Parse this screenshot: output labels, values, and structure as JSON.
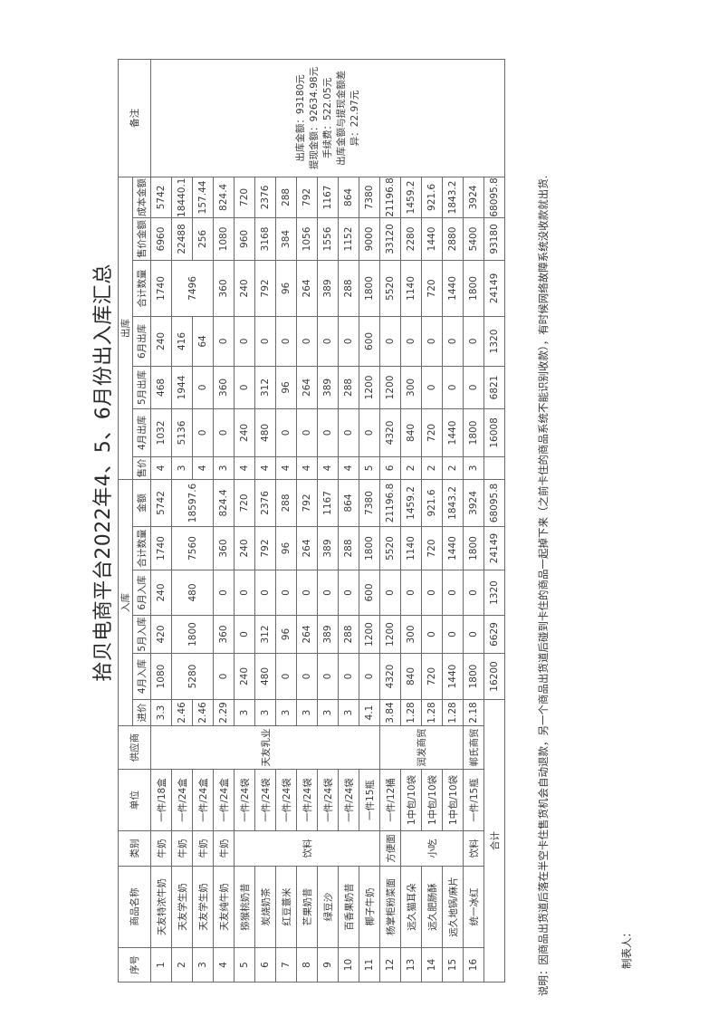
{
  "title": "拾贝电商平台2022年4、5、6月份出入库汇总",
  "headers": {
    "no": "序号",
    "name": "商品名称",
    "category": "类别",
    "unit": "单位",
    "supplier": "供应商",
    "inbound_group": "入库",
    "outbound_group": "出库",
    "remarks": "备注",
    "cost_price": "进价",
    "in_apr": "4月入库",
    "in_may": "5月入库",
    "in_jun": "6月入库",
    "in_total": "合计数量",
    "in_amount": "金额",
    "sale_price": "售价",
    "out_apr": "4月出库",
    "out_may": "5月出库",
    "out_jun": "6月出库",
    "out_total": "合计数量",
    "sale_amount": "售价金额",
    "cost_amount": "成本金额"
  },
  "rows": [
    {
      "no": "1",
      "name": "天友特浓牛奶",
      "category": "牛奶",
      "unit": "一件/18盒",
      "supplier": "天友乳业",
      "cost_price": "3.3",
      "in_apr": "1080",
      "in_may": "420",
      "in_jun": "240",
      "in_total": "1740",
      "in_amount": "5742",
      "sale_price": "4",
      "out_apr": "1032",
      "out_may": "468",
      "out_jun": "240",
      "out_total": "1740",
      "sale_amount": "6960",
      "cost_amount": "5742"
    },
    {
      "no": "2",
      "name": "天友学生奶",
      "category": "牛奶",
      "unit": "一件/24盒",
      "cost_price": "2.46",
      "in_apr": "5280",
      "in_may": "1800",
      "in_jun": "480",
      "in_total": "7560",
      "in_amount": "18597.6",
      "sale_price": "3",
      "out_apr": "5136",
      "out_may": "1944",
      "out_jun": "416",
      "out_total": "7496",
      "sale_amount": "22488",
      "cost_amount": "18440.16"
    },
    {
      "no": "3",
      "name": "天友学生奶",
      "category": "牛奶",
      "unit": "一件/24盒",
      "cost_price": "2.46",
      "sale_price": "4",
      "out_apr": "0",
      "out_may": "0",
      "out_jun": "64",
      "sale_amount": "256",
      "cost_amount": "157.44"
    },
    {
      "no": "4",
      "name": "天友纯牛奶",
      "category": "牛奶",
      "unit": "一件/24盒",
      "cost_price": "2.29",
      "in_apr": "0",
      "in_may": "360",
      "in_jun": "0",
      "in_total": "360",
      "in_amount": "824.4",
      "sale_price": "3",
      "out_apr": "0",
      "out_may": "360",
      "out_jun": "0",
      "out_total": "360",
      "sale_amount": "1080",
      "cost_amount": "824.4"
    },
    {
      "no": "5",
      "name": "猕猴桃奶昔",
      "category": "饮料",
      "unit": "一件/24袋",
      "cost_price": "3",
      "in_apr": "240",
      "in_may": "0",
      "in_jun": "0",
      "in_total": "240",
      "in_amount": "720",
      "sale_price": "4",
      "out_apr": "240",
      "out_may": "0",
      "out_jun": "0",
      "out_total": "240",
      "sale_amount": "960",
      "cost_amount": "720"
    },
    {
      "no": "6",
      "name": "炭烧奶茶",
      "unit": "一件/24袋",
      "cost_price": "3",
      "in_apr": "480",
      "in_may": "312",
      "in_jun": "0",
      "in_total": "792",
      "in_amount": "2376",
      "sale_price": "4",
      "out_apr": "480",
      "out_may": "312",
      "out_jun": "0",
      "out_total": "792",
      "sale_amount": "3168",
      "cost_amount": "2376"
    },
    {
      "no": "7",
      "name": "红豆薏米",
      "unit": "一件/24袋",
      "cost_price": "3",
      "in_apr": "0",
      "in_may": "96",
      "in_jun": "0",
      "in_total": "96",
      "in_amount": "288",
      "sale_price": "4",
      "out_apr": "0",
      "out_may": "96",
      "out_jun": "0",
      "out_total": "96",
      "sale_amount": "384",
      "cost_amount": "288"
    },
    {
      "no": "8",
      "name": "芒果奶昔",
      "unit": "一件/24袋",
      "cost_price": "3",
      "in_apr": "0",
      "in_may": "264",
      "in_jun": "0",
      "in_total": "264",
      "in_amount": "792",
      "sale_price": "4",
      "out_apr": "0",
      "out_may": "264",
      "out_jun": "0",
      "out_total": "264",
      "sale_amount": "1056",
      "cost_amount": "792"
    },
    {
      "no": "9",
      "name": "绿豆沙",
      "unit": "一件/24袋",
      "cost_price": "3",
      "in_apr": "0",
      "in_may": "389",
      "in_jun": "0",
      "in_total": "389",
      "in_amount": "1167",
      "sale_price": "4",
      "out_apr": "0",
      "out_may": "389",
      "out_jun": "0",
      "out_total": "389",
      "sale_amount": "1556",
      "cost_amount": "1167"
    },
    {
      "no": "10",
      "name": "百香果奶昔",
      "unit": "一件/24袋",
      "cost_price": "3",
      "in_apr": "0",
      "in_may": "288",
      "in_jun": "0",
      "in_total": "288",
      "in_amount": "864",
      "sale_price": "4",
      "out_apr": "0",
      "out_may": "288",
      "out_jun": "0",
      "out_total": "288",
      "sale_amount": "1152",
      "cost_amount": "864"
    },
    {
      "no": "11",
      "name": "椰子牛奶",
      "unit": "一件15瓶",
      "cost_price": "4.1",
      "in_apr": "0",
      "in_may": "1200",
      "in_jun": "600",
      "in_total": "1800",
      "in_amount": "7380",
      "sale_price": "5",
      "out_apr": "0",
      "out_may": "1200",
      "out_jun": "600",
      "out_total": "1800",
      "sale_amount": "9000",
      "cost_amount": "7380"
    },
    {
      "no": "12",
      "name": "杨掌柜粉菜面",
      "category": "方便面",
      "unit": "一件/12桶",
      "supplier": "润发商贸",
      "cost_price": "3.84",
      "in_apr": "4320",
      "in_may": "1200",
      "in_jun": "0",
      "in_total": "5520",
      "in_amount": "21196.8",
      "sale_price": "6",
      "out_apr": "4320",
      "out_may": "1200",
      "out_jun": "0",
      "out_total": "5520",
      "sale_amount": "33120",
      "cost_amount": "21196.8"
    },
    {
      "no": "13",
      "name": "远久猫耳朵",
      "category": "小吃",
      "unit": "1中包/10袋",
      "cost_price": "1.28",
      "in_apr": "840",
      "in_may": "300",
      "in_jun": "0",
      "in_total": "1140",
      "in_amount": "1459.2",
      "sale_price": "2",
      "out_apr": "840",
      "out_may": "300",
      "out_jun": "0",
      "out_total": "1140",
      "sale_amount": "2280",
      "cost_amount": "1459.2"
    },
    {
      "no": "14",
      "name": "远久肥肠酥",
      "unit": "1中包/10袋",
      "cost_price": "1.28",
      "in_apr": "720",
      "in_may": "0",
      "in_jun": "0",
      "in_total": "720",
      "in_amount": "921.6",
      "sale_price": "2",
      "out_apr": "720",
      "out_may": "0",
      "out_jun": "0",
      "out_total": "720",
      "sale_amount": "1440",
      "cost_amount": "921.6"
    },
    {
      "no": "15",
      "name": "远久地锅/麻片",
      "unit": "1中包/10袋",
      "cost_price": "1.28",
      "in_apr": "1440",
      "in_may": "0",
      "in_jun": "0",
      "in_total": "1440",
      "in_amount": "1843.2",
      "sale_price": "2",
      "out_apr": "1440",
      "out_may": "0",
      "out_jun": "0",
      "out_total": "1440",
      "sale_amount": "2880",
      "cost_amount": "1843.2"
    },
    {
      "no": "16",
      "name": "统一冰红",
      "category": "饮料",
      "unit": "一件/15瓶",
      "supplier": "郸氏商贸",
      "cost_price": "2.18",
      "in_apr": "1800",
      "in_may": "0",
      "in_jun": "0",
      "in_total": "1800",
      "in_amount": "3924",
      "sale_price": "3",
      "out_apr": "1800",
      "out_may": "0",
      "out_jun": "0",
      "out_total": "1800",
      "sale_amount": "5400",
      "cost_amount": "3924"
    }
  ],
  "total": {
    "label": "合计",
    "in_apr": "16200",
    "in_may": "6629",
    "in_jun": "1320",
    "in_total": "24149",
    "in_amount": "68095.8",
    "sale_price": "",
    "out_apr": "16008",
    "out_may": "6821",
    "out_jun": "1320",
    "out_total": "24149",
    "sale_amount": "93180",
    "cost_amount": "68095.8"
  },
  "remarks": [
    "出库金额：93180元",
    "提现金额：92634.98元",
    "手续费：522.05元",
    "出库金额与提现金额差异：22.97元"
  ],
  "note": "说明：因商品出货道后落在半空卡住售货机会自动退款，另一个商品出货道后碰到卡住的商品一起掉下来（之前卡住的商品系统不能识别收款），有时候网络故障系统没收款就出货.",
  "maker_label": "制表人："
}
